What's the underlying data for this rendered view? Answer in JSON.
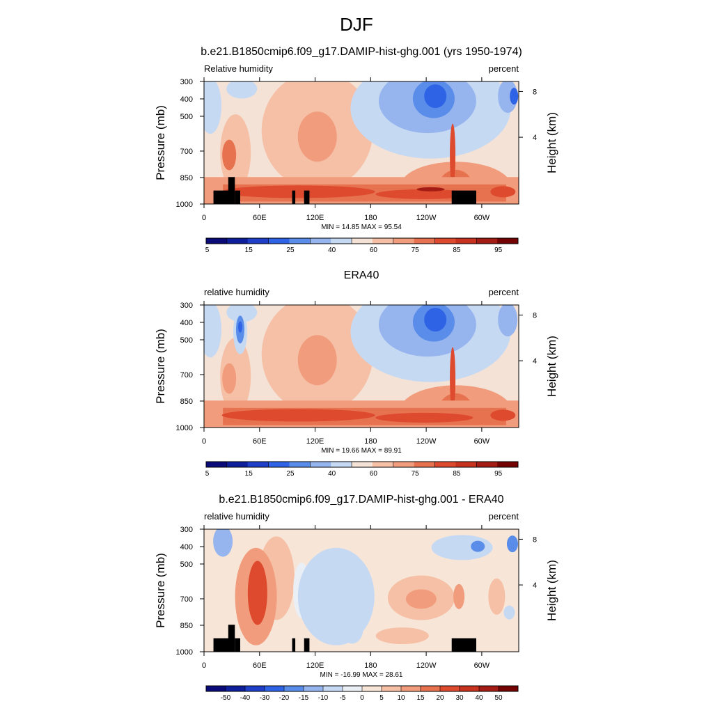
{
  "figure": {
    "title": "DJF"
  },
  "colors": {
    "absolute": [
      "#0a0a78",
      "#0f1f9c",
      "#1f3fc8",
      "#2e63e6",
      "#5a8de9",
      "#96b4ee",
      "#c6d9f3",
      "#f4e2d6",
      "#f6c0a6",
      "#f19d7d",
      "#e6724f",
      "#dd4a2e",
      "#c8331f",
      "#a31c15",
      "#740404"
    ],
    "difference": [
      "#0a0a78",
      "#0f1f9c",
      "#1f3fc8",
      "#2e63e6",
      "#5a8de9",
      "#96b4ee",
      "#c6d9f3",
      "#eaeff6",
      "#f7e6d8",
      "#f6c0a6",
      "#f19d7d",
      "#e6724f",
      "#dd4a2e",
      "#c8331f",
      "#a31c15",
      "#740404"
    ],
    "terrain": "#000000"
  },
  "chart_data": [
    {
      "type": "heatmap",
      "title": "b.e21.B1850cmip6.f09_g17.DAMIP-hist-ghg.001 (yrs 1950-1974)",
      "left_label": "Relative humidity",
      "right_label": "percent",
      "ylabel": "Pressure (mb)",
      "y2label": "Height (km)",
      "yticks": [
        "300",
        "400",
        "500",
        "700",
        "850",
        "1000"
      ],
      "y2ticks": [
        "8",
        "4"
      ],
      "xticks": [
        "0",
        "60E",
        "120E",
        "180",
        "120W",
        "60W"
      ],
      "stats": "MIN =  14.85  MAX =  95.54",
      "colorbar_labels": [
        "5",
        "15",
        "25",
        "40",
        "60",
        "75",
        "85",
        "95"
      ],
      "terrain": true
    },
    {
      "type": "heatmap",
      "title": "ERA40",
      "left_label": "relative humidity",
      "right_label": "percent",
      "ylabel": "Pressure (mb)",
      "y2label": "Height (km)",
      "yticks": [
        "300",
        "400",
        "500",
        "700",
        "850",
        "1000"
      ],
      "y2ticks": [
        "8",
        "4"
      ],
      "xticks": [
        "0",
        "60E",
        "120E",
        "180",
        "120W",
        "60W"
      ],
      "stats": "MIN =  19.66  MAX =  89.91",
      "colorbar_labels": [
        "5",
        "15",
        "25",
        "40",
        "60",
        "75",
        "85",
        "95"
      ],
      "terrain": false
    },
    {
      "type": "heatmap",
      "title": "b.e21.B1850cmip6.f09_g17.DAMIP-hist-ghg.001 - ERA40",
      "left_label": "relative humidity",
      "right_label": "percent",
      "ylabel": "Pressure (mb)",
      "y2label": "Height (km)",
      "yticks": [
        "300",
        "400",
        "500",
        "700",
        "850",
        "1000"
      ],
      "y2ticks": [
        "8",
        "4"
      ],
      "xticks": [
        "0",
        "60E",
        "120E",
        "180",
        "120W",
        "60W"
      ],
      "stats": "MIN = -16.99  MAX =  28.61",
      "colorbar_labels": [
        "-50",
        "-40",
        "-30",
        "-20",
        "-15",
        "-10",
        "-5",
        "0",
        "5",
        "10",
        "15",
        "20",
        "30",
        "40",
        "50"
      ],
      "terrain": true
    }
  ]
}
